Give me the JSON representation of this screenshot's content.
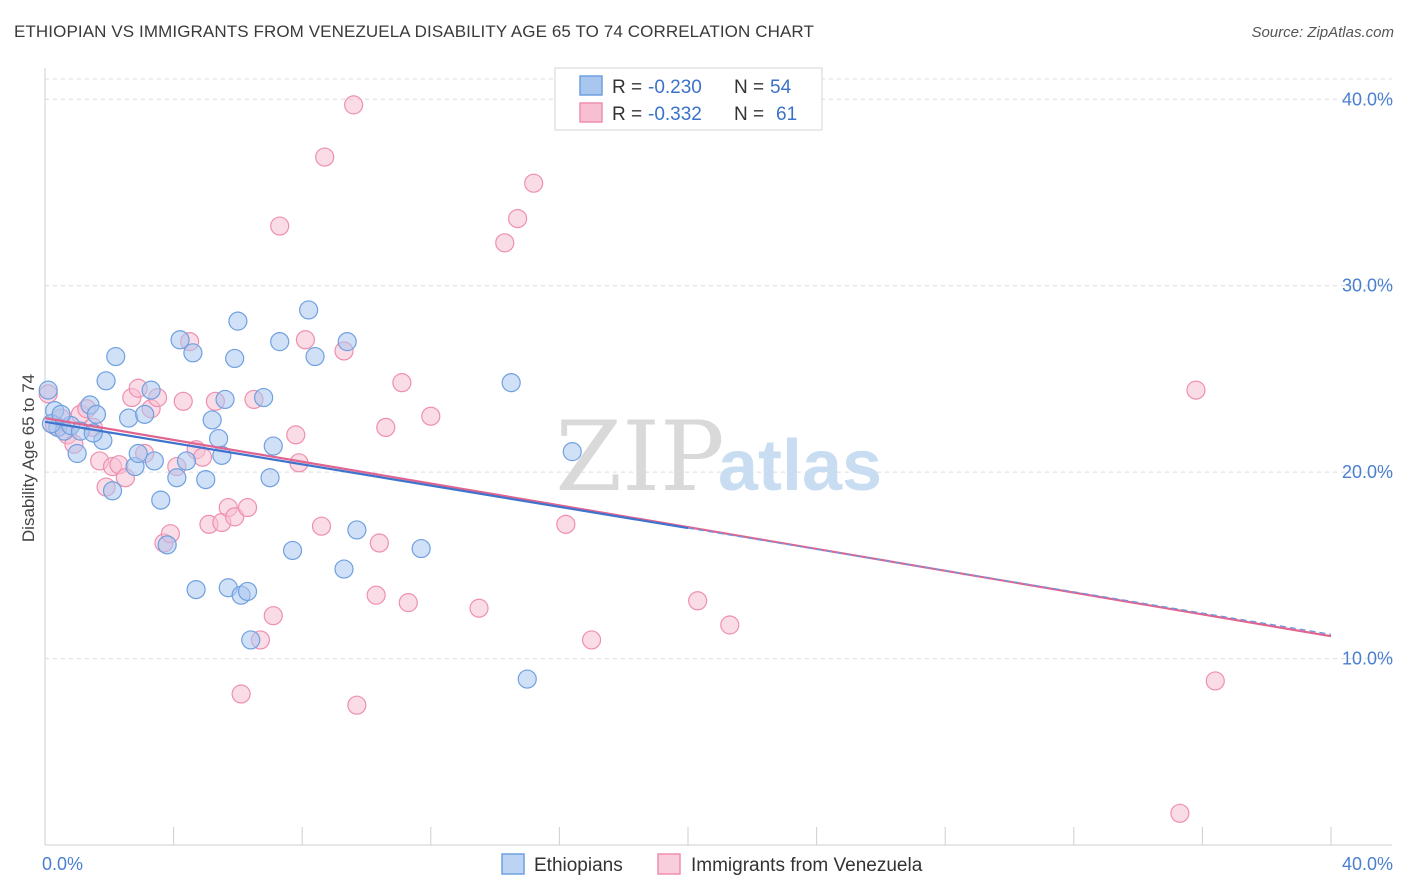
{
  "header": {
    "title": "ETHIOPIAN VS IMMIGRANTS FROM VENEZUELA DISABILITY AGE 65 TO 74 CORRELATION CHART",
    "source": "Source: ZipAtlas.com"
  },
  "watermark": {
    "zip": "ZIP",
    "atlas": "atlas"
  },
  "chart_data": {
    "type": "scatter",
    "title": "ETHIOPIAN VS IMMIGRANTS FROM VENEZUELA DISABILITY AGE 65 TO 74 CORRELATION CHART",
    "xlabel": "",
    "ylabel": "Disability Age 65 to 74",
    "xlim": [
      0,
      40
    ],
    "ylim": [
      0,
      42
    ],
    "x_tick_labels": [
      "0.0%",
      "40.0%"
    ],
    "y_ticks": [
      10,
      20,
      30,
      40
    ],
    "y_tick_labels": [
      "10.0%",
      "20.0%",
      "30.0%",
      "40.0%"
    ],
    "grid": "horizontal dashed",
    "legend_placement": "top-center",
    "legend": [
      {
        "r_label": "R = ",
        "r_value": "-0.230",
        "n_label": "N = ",
        "n_value": "54",
        "color": "#6fa0e0"
      },
      {
        "r_label": "R = ",
        "r_value": "-0.332",
        "n_label": "N = ",
        "n_value": "61",
        "color": "#ef8fb0"
      }
    ],
    "series": [
      {
        "name": "Ethiopians",
        "color": "#6fa0e0",
        "fill": "#a9c6ef",
        "trend": {
          "x": [
            0,
            20
          ],
          "y": [
            22.7,
            17.0
          ]
        },
        "x": [
          0.1,
          0.3,
          0.4,
          0.6,
          0.8,
          1.0,
          1.1,
          1.4,
          1.6,
          1.8,
          1.9,
          2.1,
          2.2,
          2.6,
          2.8,
          2.9,
          3.1,
          3.3,
          3.4,
          3.6,
          3.8,
          4.1,
          4.2,
          4.4,
          4.6,
          4.7,
          5.0,
          5.2,
          5.4,
          5.5,
          5.6,
          5.7,
          5.9,
          6.0,
          6.1,
          6.3,
          6.4,
          6.8,
          7.0,
          7.1,
          7.3,
          7.7,
          8.2,
          8.4,
          9.3,
          9.4,
          9.7,
          11.7,
          14.5,
          15.0,
          16.4,
          0.2,
          0.5,
          1.5
        ],
        "y": [
          24.4,
          23.3,
          22.4,
          22.2,
          22.5,
          21.0,
          22.2,
          23.6,
          23.1,
          21.7,
          24.9,
          19.0,
          26.2,
          22.9,
          20.3,
          21.0,
          23.1,
          24.4,
          20.6,
          18.5,
          16.1,
          19.7,
          27.1,
          20.6,
          26.4,
          13.7,
          19.6,
          22.8,
          21.8,
          20.9,
          23.9,
          13.8,
          26.1,
          28.1,
          13.4,
          13.6,
          11.0,
          24.0,
          19.7,
          21.4,
          27.0,
          15.8,
          28.7,
          26.2,
          14.8,
          27.0,
          16.9,
          15.9,
          24.8,
          8.9,
          21.1,
          22.6,
          23.1,
          22.1
        ]
      },
      {
        "name": "Immigrants from Venezuela",
        "color": "#ef8fb0",
        "fill": "#f6bfd2",
        "trend": {
          "x": [
            0,
            40
          ],
          "y": [
            22.9,
            11.2
          ]
        },
        "x": [
          0.1,
          0.3,
          0.5,
          0.7,
          0.9,
          1.1,
          1.3,
          1.5,
          1.7,
          1.9,
          2.1,
          2.3,
          2.5,
          2.7,
          2.9,
          3.1,
          3.3,
          3.5,
          3.7,
          3.9,
          4.1,
          4.3,
          4.5,
          4.7,
          4.9,
          5.1,
          5.3,
          5.5,
          5.7,
          5.9,
          6.1,
          6.3,
          6.5,
          6.7,
          7.1,
          7.3,
          7.8,
          7.9,
          8.1,
          8.6,
          8.7,
          9.3,
          9.6,
          9.7,
          10.3,
          10.4,
          10.6,
          11.1,
          11.3,
          13.5,
          14.3,
          14.7,
          15.2,
          16.2,
          17.0,
          20.3,
          21.3,
          35.3,
          35.8,
          36.4,
          12.0
        ],
        "y": [
          24.2,
          22.5,
          22.9,
          22.0,
          21.5,
          23.1,
          23.4,
          22.4,
          20.6,
          19.2,
          20.3,
          20.4,
          19.7,
          24.0,
          24.5,
          21.0,
          23.4,
          24.0,
          16.2,
          16.7,
          20.3,
          23.8,
          27.0,
          21.2,
          20.8,
          17.2,
          23.8,
          17.3,
          18.1,
          17.6,
          8.1,
          18.1,
          23.9,
          11.0,
          12.3,
          33.2,
          22.0,
          20.5,
          27.1,
          17.1,
          36.9,
          26.5,
          39.7,
          7.5,
          13.4,
          16.2,
          22.4,
          24.8,
          13.0,
          12.7,
          32.3,
          33.6,
          35.5,
          17.2,
          11.0,
          13.1,
          11.8,
          1.7,
          24.4,
          8.8,
          23.0
        ]
      }
    ]
  },
  "bottom_legend": [
    {
      "label": "Ethiopians",
      "color": "#6fa0e0",
      "fill": "#bcd3f3"
    },
    {
      "label": "Immigrants from Venezuela",
      "color": "#ef8fb0",
      "fill": "#f8cddc"
    }
  ]
}
